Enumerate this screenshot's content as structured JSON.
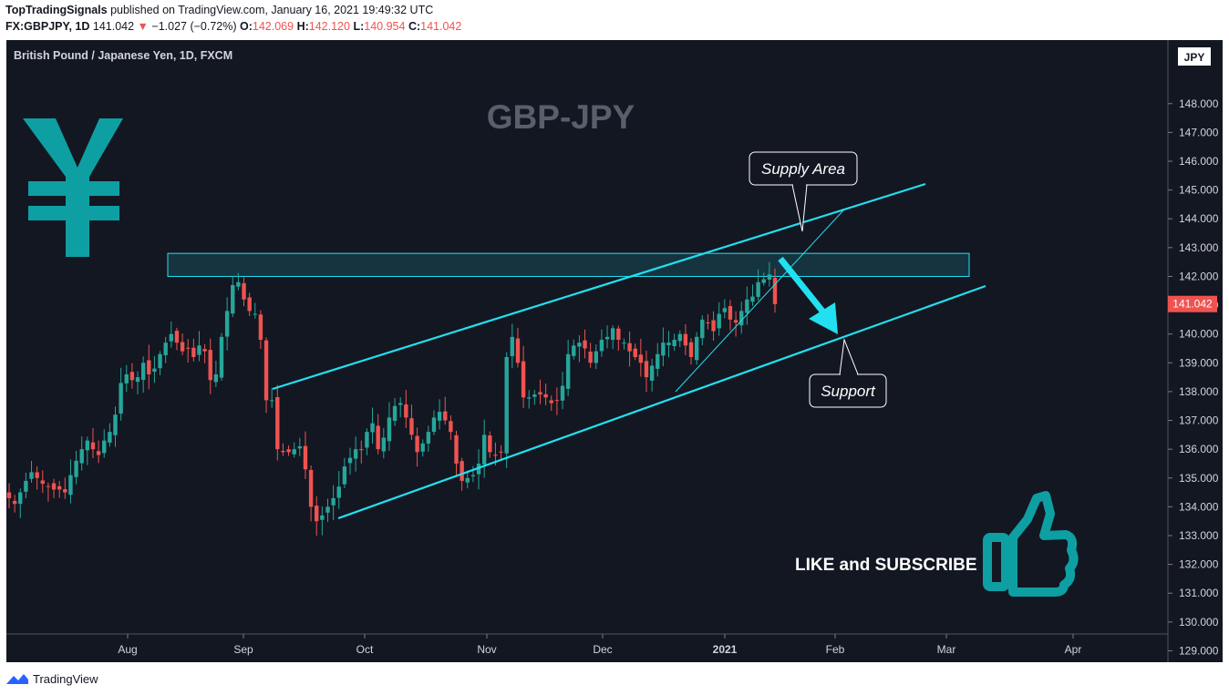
{
  "header": {
    "author": "TopTradingSignals",
    "published": "published on TradingView.com, January 16, 2021 19:49:32 UTC",
    "symbol": "FX:GBPJPY, 1D",
    "last": "141.042",
    "arrow": "▼",
    "change": "−1.027 (−0.72%)",
    "o_label": "O:",
    "o_value": "142.069",
    "h_label": "H:",
    "h_value": "142.120",
    "l_label": "L:",
    "l_value": "140.954",
    "c_label": "C:",
    "c_value": "141.042"
  },
  "footer": {
    "brand": "TradingView"
  },
  "chart_data": {
    "type": "candlestick",
    "title": "British Pound / Japanese Yen, 1D, FXCM",
    "watermark": "GBP-JPY",
    "currency": "JPY",
    "last_price_label": "141.042",
    "y_ticks": [
      "129.000",
      "130.000",
      "131.000",
      "132.000",
      "133.000",
      "134.000",
      "135.000",
      "136.000",
      "137.000",
      "138.000",
      "139.000",
      "140.000",
      "141.000",
      "142.000",
      "143.000",
      "144.000",
      "145.000",
      "146.000",
      "147.000",
      "148.000"
    ],
    "x_ticks": [
      "Aug",
      "Sep",
      "Oct",
      "Nov",
      "Dec",
      "2021",
      "Feb",
      "Mar",
      "Apr"
    ],
    "ylim": [
      128.4,
      149.0
    ],
    "close_series": [
      134.3,
      134.1,
      134.5,
      134.9,
      135.2,
      135.0,
      134.8,
      134.7,
      134.6,
      134.6,
      134.5,
      135.1,
      135.6,
      136.0,
      136.3,
      136.0,
      135.8,
      136.3,
      136.6,
      137.2,
      138.3,
      138.6,
      138.4,
      138.5,
      139.0,
      138.6,
      138.8,
      139.3,
      139.7,
      140.0,
      139.7,
      139.4,
      139.5,
      139.2,
      139.6,
      139.4,
      138.4,
      138.6,
      139.9,
      140.8,
      141.7,
      141.8,
      141.2,
      140.8,
      140.7,
      139.8,
      137.7,
      137.7,
      136.0,
      135.9,
      135.9,
      136.0,
      136.1,
      135.3,
      134.0,
      133.5,
      133.7,
      134.0,
      134.3,
      134.7,
      135.4,
      135.7,
      136.0,
      136.0,
      136.6,
      136.9,
      136.0,
      136.4,
      137.1,
      137.5,
      137.6,
      137.1,
      136.5,
      135.9,
      136.2,
      136.6,
      137.1,
      137.3,
      137.0,
      136.6,
      135.5,
      134.9,
      135.0,
      135.1,
      135.5,
      136.5,
      135.9,
      135.8,
      135.9,
      139.2,
      139.9,
      139.0,
      137.8,
      137.8,
      137.9,
      137.9,
      137.8,
      137.6,
      137.7,
      138.2,
      139.3,
      139.6,
      139.7,
      139.5,
      139.0,
      139.4,
      139.8,
      139.9,
      140.2,
      139.8,
      139.7,
      139.4,
      139.2,
      139.0,
      138.5,
      138.9,
      139.3,
      139.7,
      139.7,
      139.8,
      140.0,
      139.6,
      139.2,
      139.9,
      140.5,
      140.4,
      140.1,
      140.7,
      140.9,
      140.5,
      140.4,
      140.8,
      141.2,
      141.3,
      141.8,
      141.9,
      142.07,
      141.04
    ],
    "supply_area": {
      "low": 142.0,
      "high": 142.8,
      "label": "Supply Area"
    },
    "support_label": "Support",
    "annotation": "LIKE and SUBSCRIBE",
    "colors": {
      "up": "#26a69a",
      "down": "#ef5350",
      "channel": "#22e0f0",
      "background": "#131722",
      "yen": "#0e9fa3"
    }
  }
}
